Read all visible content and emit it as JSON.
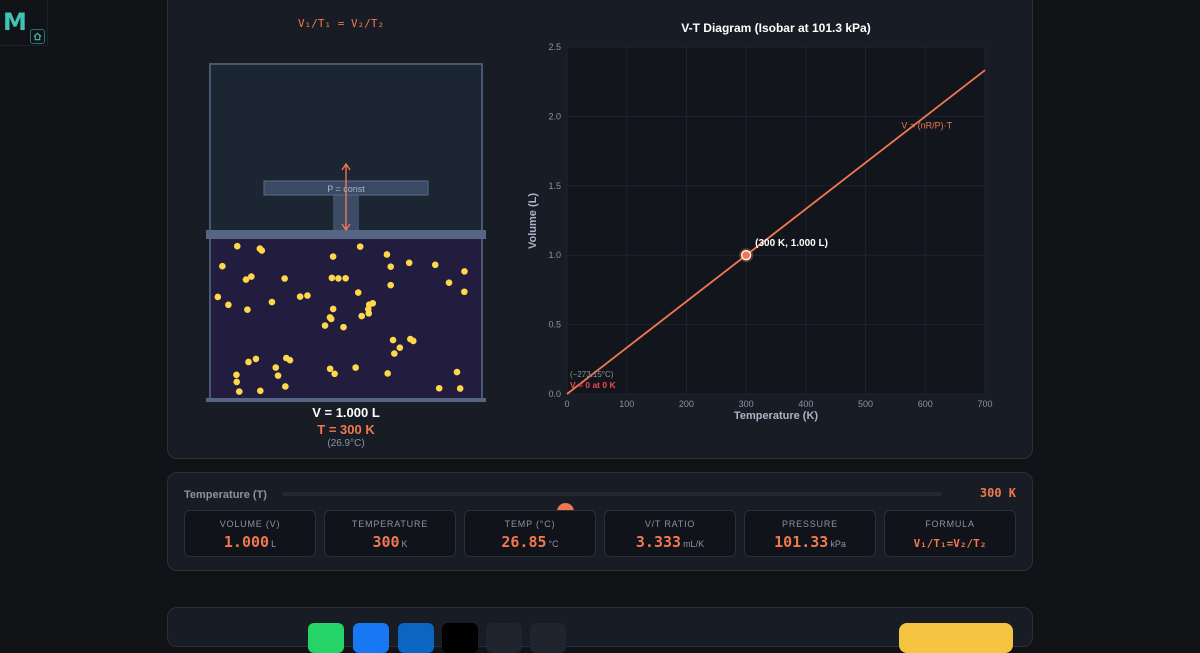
{
  "logo": {
    "letter": "M"
  },
  "simulation": {
    "formula": "V₁/T₁ = V₂/T₂",
    "piston_label": "P = const",
    "volume_readout": "V = 1.000 L",
    "temperature_readout": "T = 300 K",
    "celsius_readout": "(26.9°C)",
    "particle_count": 60
  },
  "chart_data": {
    "type": "line",
    "title": "V-T Diagram (Isobar at 101.3 kPa)",
    "xlabel": "Temperature (K)",
    "ylabel": "Volume (L)",
    "xlim": [
      0,
      700
    ],
    "ylim": [
      0,
      2.5
    ],
    "xticks": [
      "0",
      "100",
      "200",
      "300",
      "400",
      "500",
      "600",
      "700"
    ],
    "yticks": [
      "0.0",
      "0.5",
      "1.0",
      "1.5",
      "2.0",
      "2.5"
    ],
    "grid": true,
    "series": [
      {
        "name": "V = (nR/P)·T",
        "x": [
          0,
          700
        ],
        "y": [
          0,
          2.333
        ]
      }
    ],
    "current_point": {
      "x": 300,
      "y": 1.0,
      "label": "(300 K, 1.000 L)"
    },
    "annotations": {
      "zero_celsius": "(−273.15°C)",
      "zero_volume": "V = 0 at 0 K"
    },
    "colors": {
      "line": "#f07850",
      "point": "#f07850"
    }
  },
  "controls": {
    "slider_label": "Temperature (T)",
    "slider_value": "300 K",
    "slider_min": 0,
    "slider_max": 700,
    "slider_current": 300,
    "stats": [
      {
        "label": "VOLUME (V)",
        "value": "1.000",
        "unit": "L"
      },
      {
        "label": "TEMPERATURE",
        "value": "300",
        "unit": "K"
      },
      {
        "label": "TEMP (°C)",
        "value": "26.85",
        "unit": "°C"
      },
      {
        "label": "V/T RATIO",
        "value": "3.333",
        "unit": "mL/K"
      },
      {
        "label": "PRESSURE",
        "value": "101.33",
        "unit": "kPa"
      },
      {
        "label": "FORMULA",
        "value": "V₁/T₁=V₂/T₂",
        "unit": ""
      }
    ]
  },
  "share_buttons": [
    {
      "icon": "whatsapp-icon",
      "color": "#25d366"
    },
    {
      "icon": "facebook-icon",
      "color": "#1877f2"
    },
    {
      "icon": "linkedin-icon",
      "color": "#0a66c2"
    },
    {
      "icon": "x-icon",
      "color": "#000000"
    },
    {
      "icon": "share-icon",
      "color": "#20242e"
    },
    {
      "icon": "link-icon",
      "color": "#20242e"
    }
  ],
  "theme": {
    "accent": "#f07850",
    "particle": "#ffd84a",
    "cta": "#f5c542"
  }
}
